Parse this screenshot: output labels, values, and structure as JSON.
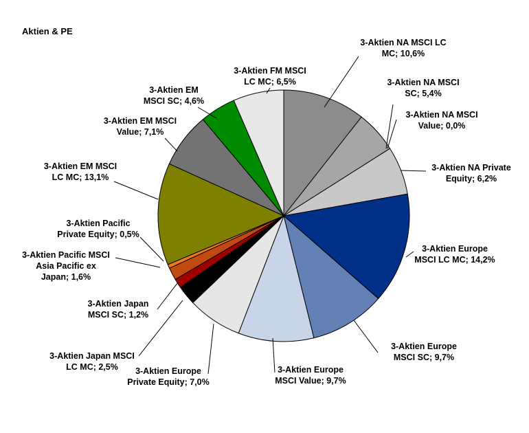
{
  "chart_data": {
    "type": "pie",
    "title": "Aktien & PE",
    "start_angle_deg": 0,
    "direction": "clockwise",
    "slices": [
      {
        "name": "3-Aktien NA MSCI LC MC",
        "value": 10.6,
        "label_lines": [
          "3-Aktien NA MSCI LC",
          "MC; 10,6%"
        ],
        "color": "#8c8c8c"
      },
      {
        "name": "3-Aktien NA MSCI SC",
        "value": 5.4,
        "label_lines": [
          "3-Aktien NA MSCI",
          "SC; 5,4%"
        ],
        "color": "#a6a6a6"
      },
      {
        "name": "3-Aktien NA MSCI Value",
        "value": 0.0,
        "label_lines": [
          "3-Aktien NA MSCI",
          "Value; 0,0%"
        ],
        "color": "#bfbfbf"
      },
      {
        "name": "3-Aktien NA Private Equity",
        "value": 6.2,
        "label_lines": [
          "3-Aktien NA Private",
          "Equity; 6,2%"
        ],
        "color": "#c8c8c8"
      },
      {
        "name": "3-Aktien Europe MSCI LC MC",
        "value": 14.2,
        "label_lines": [
          "3-Aktien Europe",
          "MSCI LC MC; 14,2%"
        ],
        "color": "#003087"
      },
      {
        "name": "3-Aktien Europe MSCI SC",
        "value": 9.7,
        "label_lines": [
          "3-Aktien Europe",
          "MSCI SC; 9,7%"
        ],
        "color": "#6380b5"
      },
      {
        "name": "3-Aktien Europe MSCI Value",
        "value": 9.7,
        "label_lines": [
          "3-Aktien Europe",
          "MSCI Value; 9,7%"
        ],
        "color": "#c8d4e8"
      },
      {
        "name": "3-Aktien Europe Private Equity",
        "value": 7.0,
        "label_lines": [
          "3-Aktien Europe",
          "Private Equity; 7,0%"
        ],
        "color": "#e6e6e6"
      },
      {
        "name": "3-Aktien Japan MSCI LC MC",
        "value": 2.5,
        "label_lines": [
          "3-Aktien Japan MSCI",
          "LC MC; 2,5%"
        ],
        "color": "#000000"
      },
      {
        "name": "3-Aktien Japan MSCI SC",
        "value": 1.2,
        "label_lines": [
          "3-Aktien Japan",
          "MSCI SC; 1,2%"
        ],
        "color": "#a00000"
      },
      {
        "name": "3-Aktien Pacific MSCI Asia Pacific ex Japan",
        "value": 1.6,
        "label_lines": [
          "3-Aktien Pacific MSCI",
          "Asia Pacific ex",
          "Japan; 1,6%"
        ],
        "color": "#c04a10"
      },
      {
        "name": "3-Aktien Pacific Private Equity",
        "value": 0.5,
        "label_lines": [
          "3-Aktien Pacific",
          "Private Equity; 0,5%"
        ],
        "color": "#f07a1a"
      },
      {
        "name": "3-Aktien EM MSCI LC MC",
        "value": 13.1,
        "label_lines": [
          "3-Aktien EM MSCI",
          "LC MC; 13,1%"
        ],
        "color": "#808000"
      },
      {
        "name": "3-Aktien EM MSCI Value",
        "value": 7.1,
        "label_lines": [
          "3-Aktien EM MSCI",
          "Value; 7,1%"
        ],
        "color": "#737373"
      },
      {
        "name": "3-Aktien EM MSCI SC",
        "value": 4.6,
        "label_lines": [
          "3-Aktien EM",
          "MSCI SC; 4,6%"
        ],
        "color": "#008a00"
      },
      {
        "name": "3-Aktien FM MSCI LC MC",
        "value": 6.5,
        "label_lines": [
          "3-Aktien FM MSCI",
          "LC MC; 6,5%"
        ],
        "color": "#e8e8e8"
      }
    ],
    "legend": "none",
    "labels": "outside-with-leader-lines"
  }
}
